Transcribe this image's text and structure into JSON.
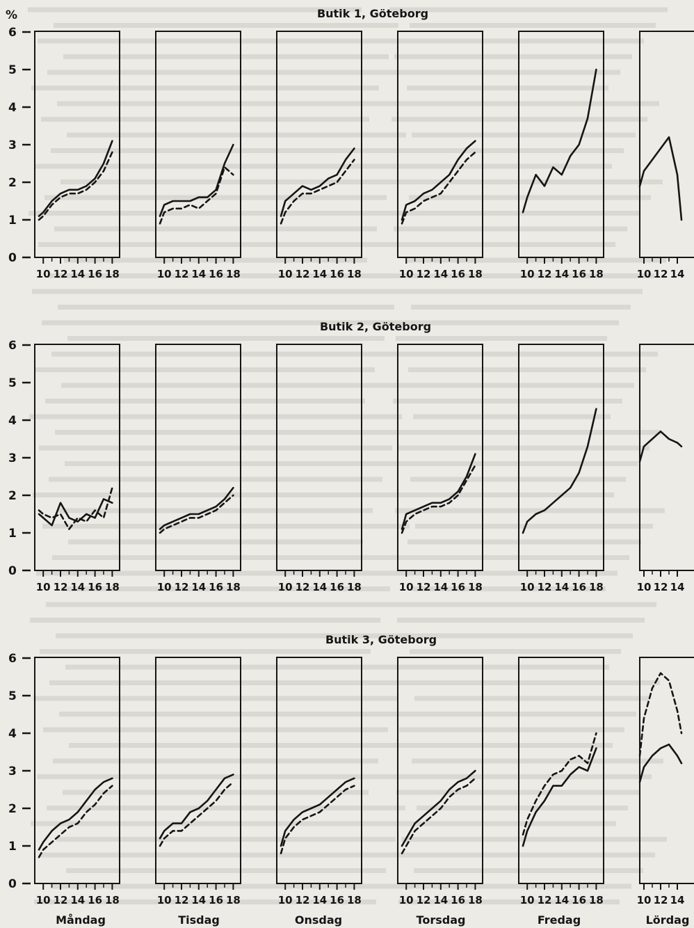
{
  "colors": {
    "paper": "#ecebe6",
    "ink": "#151515",
    "bleed": "#d9d8d2"
  },
  "figure": {
    "y_unit": "%",
    "day_labels": [
      "Måndag",
      "Tisdag",
      "Onsdag",
      "Torsdag",
      "Fredag",
      "Lördag"
    ]
  },
  "chart_data": [
    {
      "type": "line",
      "title": "Butik 1, Göteborg",
      "ylabel": "%",
      "ylim": [
        0,
        6
      ],
      "grid": false,
      "x_ticks": [
        10,
        12,
        14,
        16,
        18
      ],
      "x_ticks_saturday": [
        10,
        12,
        14
      ],
      "days": [
        {
          "day": "Måndag",
          "x": [
            9.5,
            10,
            11,
            12,
            13,
            14,
            15,
            16,
            17,
            18
          ],
          "solid": [
            1.1,
            1.2,
            1.5,
            1.7,
            1.8,
            1.8,
            1.9,
            2.1,
            2.5,
            3.1
          ],
          "dashed": [
            1.0,
            1.1,
            1.4,
            1.6,
            1.7,
            1.7,
            1.8,
            2.0,
            2.3,
            2.8
          ]
        },
        {
          "day": "Tisdag",
          "x": [
            9.5,
            10,
            11,
            12,
            13,
            14,
            15,
            16,
            17,
            18
          ],
          "solid": [
            1.1,
            1.4,
            1.5,
            1.5,
            1.5,
            1.6,
            1.6,
            1.8,
            2.5,
            3.0
          ],
          "dashed": [
            0.9,
            1.2,
            1.3,
            1.3,
            1.4,
            1.3,
            1.5,
            1.7,
            2.4,
            2.2
          ]
        },
        {
          "day": "Onsdag",
          "x": [
            9.5,
            10,
            11,
            12,
            13,
            14,
            15,
            16,
            17,
            18
          ],
          "solid": [
            1.1,
            1.5,
            1.7,
            1.9,
            1.8,
            1.9,
            2.1,
            2.2,
            2.6,
            2.9
          ],
          "dashed": [
            0.9,
            1.2,
            1.5,
            1.7,
            1.7,
            1.8,
            1.9,
            2.0,
            2.3,
            2.6
          ]
        },
        {
          "day": "Torsdag",
          "x": [
            9.5,
            10,
            11,
            12,
            13,
            14,
            15,
            16,
            17,
            18
          ],
          "solid": [
            1.0,
            1.4,
            1.5,
            1.7,
            1.8,
            2.0,
            2.2,
            2.6,
            2.9,
            3.1
          ],
          "dashed": [
            0.9,
            1.2,
            1.3,
            1.5,
            1.6,
            1.7,
            2.0,
            2.3,
            2.6,
            2.8
          ]
        },
        {
          "day": "Fredag",
          "x": [
            9.5,
            10,
            11,
            12,
            13,
            14,
            15,
            16,
            17,
            18
          ],
          "solid": [
            1.2,
            1.6,
            2.2,
            1.9,
            2.4,
            2.2,
            2.7,
            3.0,
            3.7,
            5.0
          ],
          "dashed": [
            null,
            null,
            null,
            null,
            null,
            null,
            null,
            null,
            null,
            null
          ]
        },
        {
          "day": "Lördag",
          "x": [
            9.5,
            10,
            11,
            12,
            13,
            14,
            14.5
          ],
          "solid": [
            1.9,
            2.3,
            2.6,
            2.9,
            3.2,
            2.2,
            1.0
          ],
          "dashed": [
            null,
            null,
            null,
            null,
            null,
            null,
            null
          ]
        }
      ]
    },
    {
      "type": "line",
      "title": "Butik 2, Göteborg",
      "ylabel": "%",
      "ylim": [
        0,
        6
      ],
      "grid": false,
      "x_ticks": [
        10,
        12,
        14,
        16,
        18
      ],
      "x_ticks_saturday": [
        10,
        12,
        14
      ],
      "days": [
        {
          "day": "Måndag",
          "x": [
            9.5,
            10,
            11,
            12,
            13,
            14,
            15,
            16,
            17,
            18
          ],
          "solid": [
            1.5,
            1.4,
            1.2,
            1.8,
            1.4,
            1.3,
            1.5,
            1.4,
            1.9,
            1.8
          ],
          "dashed": [
            1.6,
            1.5,
            1.4,
            1.5,
            1.1,
            1.4,
            1.3,
            1.6,
            1.4,
            2.2
          ]
        },
        {
          "day": "Tisdag",
          "x": [
            9.5,
            10,
            11,
            12,
            13,
            14,
            15,
            16,
            17,
            18
          ],
          "solid": [
            1.1,
            1.2,
            1.3,
            1.4,
            1.5,
            1.5,
            1.6,
            1.7,
            1.9,
            2.2
          ],
          "dashed": [
            1.0,
            1.1,
            1.2,
            1.3,
            1.4,
            1.4,
            1.5,
            1.6,
            1.8,
            2.0
          ]
        },
        {
          "day": "Onsdag",
          "x": [
            9.5,
            10,
            11,
            12,
            13,
            14,
            15,
            16,
            17,
            18
          ],
          "solid": [
            null,
            null,
            null,
            null,
            null,
            null,
            null,
            null,
            null,
            null
          ],
          "dashed": [
            null,
            null,
            null,
            null,
            null,
            null,
            null,
            null,
            null,
            null
          ]
        },
        {
          "day": "Torsdag",
          "x": [
            9.5,
            10,
            11,
            12,
            13,
            14,
            15,
            16,
            17,
            18
          ],
          "solid": [
            1.1,
            1.5,
            1.6,
            1.7,
            1.8,
            1.8,
            1.9,
            2.1,
            2.5,
            3.1
          ],
          "dashed": [
            1.0,
            1.3,
            1.5,
            1.6,
            1.7,
            1.7,
            1.8,
            2.0,
            2.4,
            2.8
          ]
        },
        {
          "day": "Fredag",
          "x": [
            9.5,
            10,
            11,
            12,
            13,
            14,
            15,
            16,
            17,
            18
          ],
          "solid": [
            1.0,
            1.3,
            1.5,
            1.6,
            1.8,
            2.0,
            2.2,
            2.6,
            3.3,
            4.3
          ],
          "dashed": [
            null,
            null,
            null,
            null,
            null,
            null,
            null,
            null,
            null,
            null
          ]
        },
        {
          "day": "Lördag",
          "x": [
            9.5,
            10,
            11,
            12,
            13,
            14,
            14.5
          ],
          "solid": [
            2.9,
            3.3,
            3.5,
            3.7,
            3.5,
            3.4,
            3.3
          ],
          "dashed": [
            null,
            null,
            null,
            null,
            null,
            null,
            null
          ]
        }
      ]
    },
    {
      "type": "line",
      "title": "Butik 3, Göteborg",
      "ylabel": "%",
      "ylim": [
        0,
        6
      ],
      "grid": false,
      "x_ticks": [
        10,
        12,
        14,
        16,
        18
      ],
      "x_ticks_saturday": [
        10,
        12,
        14
      ],
      "days": [
        {
          "day": "Måndag",
          "x": [
            9.5,
            10,
            11,
            12,
            13,
            14,
            15,
            16,
            17,
            18
          ],
          "solid": [
            0.9,
            1.1,
            1.4,
            1.6,
            1.7,
            1.9,
            2.2,
            2.5,
            2.7,
            2.8
          ],
          "dashed": [
            0.7,
            0.9,
            1.1,
            1.3,
            1.5,
            1.6,
            1.9,
            2.1,
            2.4,
            2.6
          ]
        },
        {
          "day": "Tisdag",
          "x": [
            9.5,
            10,
            11,
            12,
            13,
            14,
            15,
            16,
            17,
            18
          ],
          "solid": [
            1.2,
            1.4,
            1.6,
            1.6,
            1.9,
            2.0,
            2.2,
            2.5,
            2.8,
            2.9
          ],
          "dashed": [
            1.0,
            1.2,
            1.4,
            1.4,
            1.6,
            1.8,
            2.0,
            2.2,
            2.5,
            2.7
          ]
        },
        {
          "day": "Onsdag",
          "x": [
            9.5,
            10,
            11,
            12,
            13,
            14,
            15,
            16,
            17,
            18
          ],
          "solid": [
            1.0,
            1.4,
            1.7,
            1.9,
            2.0,
            2.1,
            2.3,
            2.5,
            2.7,
            2.8
          ],
          "dashed": [
            0.8,
            1.2,
            1.5,
            1.7,
            1.8,
            1.9,
            2.1,
            2.3,
            2.5,
            2.6
          ]
        },
        {
          "day": "Torsdag",
          "x": [
            9.5,
            10,
            11,
            12,
            13,
            14,
            15,
            16,
            17,
            18
          ],
          "solid": [
            1.0,
            1.2,
            1.6,
            1.8,
            2.0,
            2.2,
            2.5,
            2.7,
            2.8,
            3.0
          ],
          "dashed": [
            0.8,
            1.0,
            1.4,
            1.6,
            1.8,
            2.0,
            2.3,
            2.5,
            2.6,
            2.8
          ]
        },
        {
          "day": "Fredag",
          "x": [
            9.5,
            10,
            11,
            12,
            13,
            14,
            15,
            16,
            17,
            18
          ],
          "solid": [
            1.0,
            1.4,
            1.9,
            2.2,
            2.6,
            2.6,
            2.9,
            3.1,
            3.0,
            3.6
          ],
          "dashed": [
            1.3,
            1.7,
            2.2,
            2.6,
            2.9,
            3.0,
            3.3,
            3.4,
            3.2,
            4.0
          ]
        },
        {
          "day": "Lördag",
          "x": [
            9.5,
            10,
            11,
            12,
            13,
            14,
            14.5
          ],
          "solid": [
            2.7,
            3.1,
            3.4,
            3.6,
            3.7,
            3.4,
            3.2
          ],
          "dashed": [
            3.4,
            4.4,
            5.2,
            5.6,
            5.4,
            4.6,
            4.0
          ]
        }
      ]
    }
  ]
}
